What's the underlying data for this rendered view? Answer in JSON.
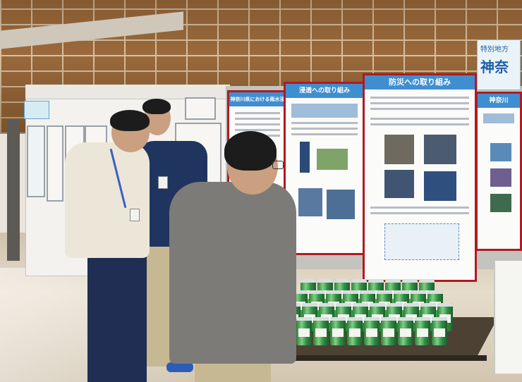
{
  "image": {
    "width": 740,
    "height": 542,
    "caption": "",
    "colors": {
      "poster_border": "#b01a22",
      "poster_header": "#3f8fd0",
      "brick_wall": "#9a6a3c",
      "can_green": "#2f7d3b"
    }
  },
  "signs": {
    "top_right_line1": "特別地方",
    "top_right_line2": "神奈"
  },
  "posters": [
    {
      "title": "神奈川県における雨水浸透"
    },
    {
      "title": "浸透への取り組み"
    },
    {
      "title": "防災への取り組み"
    },
    {
      "title": "神奈川"
    }
  ],
  "left_sign": "",
  "objects": [
    "brick-wall",
    "display-partition",
    "poster-boards",
    "visitors",
    "table-with-drink-cans"
  ]
}
